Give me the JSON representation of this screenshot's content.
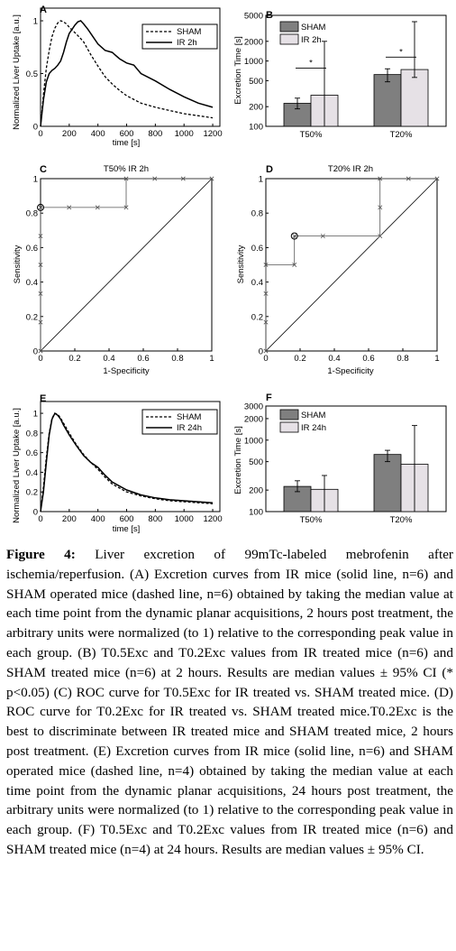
{
  "panels": {
    "A": {
      "letter": "A",
      "ylabel": "Normalized Liver Uptake [a.u.]",
      "xlabel": "time [s]",
      "legend": [
        "SHAM",
        "IR 2h"
      ]
    },
    "B": {
      "letter": "B",
      "ylabel": "Excretion Time [s]",
      "legend": [
        "SHAM",
        "IR 2h"
      ],
      "sig": "*"
    },
    "C": {
      "letter": "C",
      "title": "T50% IR 2h",
      "ylabel": "Sensitivity",
      "xlabel": "1-Specificity"
    },
    "D": {
      "letter": "D",
      "title": "T20% IR 2h",
      "ylabel": "Sensitivity",
      "xlabel": "1-Specificity"
    },
    "E": {
      "letter": "E",
      "ylabel": "Normalized Liver Uptake [a.u.]",
      "xlabel": "time [s]",
      "legend": [
        "SHAM",
        "IR 24h"
      ]
    },
    "F": {
      "letter": "F",
      "ylabel": "Excretion Time [s]",
      "legend": [
        "SHAM",
        "IR 24h"
      ]
    }
  },
  "colors": {
    "sham_bar": "#7f7f7f",
    "ir_bar": "#e6e1e6",
    "line": "#000000"
  },
  "caption": {
    "label": "Figure 4:",
    "text": " Liver excretion of 99mTc-labeled mebrofenin after ischemia/reperfusion. (A) Excretion curves from IR mice (solid line, n=6) and SHAM operated mice (dashed line, n=6) obtained by taking the median value at each time point from the dynamic planar acquisitions, 2 hours post treatment, the arbitrary units were normalized (to 1) relative to the corresponding peak value in each group. (B) T0.5Exc and T0.2Exc values from IR treated mice (n=6) and SHAM treated mice (n=6) at 2 hours. Results are median values ± 95% CI (* p<0.05) (C) ROC curve for T0.5Exc for IR treated vs. SHAM treated mice. (D) ROC curve for T0.2Exc for IR treated vs. SHAM treated mice.T0.2Exc is the best to discriminate between IR treated mice and SHAM treated mice, 2 hours post treatment. (E) Excretion curves from IR mice (solid line, n=6) and SHAM operated mice (dashed line, n=4) obtained by taking the median value at each time point from the dynamic planar acquisitions, 24 hours post treatment, the arbitrary units were normalized (to 1) relative to the corresponding peak value in each group. (F) T0.5Exc and T0.2Exc values from IR treated mice (n=6) and SHAM treated mice (n=4) at 24 hours. Results are median values ± 95% CI."
  },
  "chart_data": [
    {
      "id": "A",
      "type": "line",
      "xlabel": "time [s]",
      "ylabel": "Normalized Liver Uptake [a.u.]",
      "xlim": [
        0,
        1250
      ],
      "ylim": [
        0,
        1.12
      ],
      "xticks": [
        0,
        200,
        400,
        600,
        800,
        1000,
        1200
      ],
      "yticks": [
        0,
        0.5,
        1
      ],
      "legend_position": "top-right",
      "series": [
        {
          "name": "SHAM",
          "style": "dashed",
          "x": [
            0,
            20,
            40,
            60,
            80,
            100,
            120,
            140,
            160,
            180,
            200,
            230,
            260,
            300,
            350,
            400,
            450,
            500,
            550,
            600,
            700,
            800,
            900,
            1000,
            1100,
            1200
          ],
          "y": [
            0,
            0.3,
            0.55,
            0.72,
            0.85,
            0.93,
            0.98,
            1.0,
            0.99,
            0.97,
            0.94,
            0.9,
            0.86,
            0.8,
            0.68,
            0.57,
            0.47,
            0.4,
            0.34,
            0.29,
            0.22,
            0.18,
            0.15,
            0.12,
            0.1,
            0.08
          ]
        },
        {
          "name": "IR 2h",
          "style": "solid",
          "x": [
            0,
            20,
            40,
            60,
            80,
            100,
            120,
            140,
            160,
            180,
            200,
            220,
            240,
            260,
            280,
            300,
            330,
            360,
            400,
            450,
            500,
            550,
            600,
            650,
            700,
            800,
            900,
            1000,
            1100,
            1200
          ],
          "y": [
            0,
            0.25,
            0.42,
            0.5,
            0.53,
            0.55,
            0.58,
            0.62,
            0.7,
            0.8,
            0.88,
            0.92,
            0.96,
            0.99,
            1.0,
            0.97,
            0.92,
            0.86,
            0.78,
            0.72,
            0.7,
            0.64,
            0.6,
            0.58,
            0.5,
            0.43,
            0.35,
            0.28,
            0.22,
            0.18
          ]
        }
      ]
    },
    {
      "id": "B",
      "type": "bar",
      "ylabel": "Excretion Time [s]",
      "yscale": "log",
      "ylim": [
        100,
        5000
      ],
      "yticks": [
        100,
        200,
        500,
        1000,
        2000,
        5000
      ],
      "categories": [
        "T50%",
        "T20%"
      ],
      "legend_position": "top-left",
      "series": [
        {
          "name": "SHAM",
          "values": [
            225,
            620
          ],
          "ci_low": [
            185,
            480
          ],
          "ci_high": [
            270,
            760
          ]
        },
        {
          "name": "IR 2h",
          "values": [
            300,
            740
          ],
          "ci_low": [
            100,
            560
          ],
          "ci_high": [
            2000,
            4000
          ]
        }
      ],
      "annotations": [
        "*",
        "*"
      ]
    },
    {
      "id": "C",
      "type": "line",
      "title": "T50% IR 2h",
      "xlabel": "1-Specificity",
      "ylabel": "Sensitivity",
      "xlim": [
        0,
        1
      ],
      "ylim": [
        0,
        1
      ],
      "xticks": [
        0,
        0.2,
        0.4,
        0.6,
        0.8,
        1
      ],
      "yticks": [
        0,
        0.2,
        0.4,
        0.6,
        0.8,
        1
      ],
      "roc_x": [
        0,
        0,
        0,
        0,
        0,
        0,
        0.167,
        0.333,
        0.5,
        0.5,
        0.667,
        0.833,
        1
      ],
      "roc_y": [
        0,
        0.167,
        0.333,
        0.5,
        0.667,
        0.833,
        0.833,
        0.833,
        0.833,
        1,
        1,
        1,
        1
      ],
      "operating_point": [
        0,
        0.833
      ],
      "reference_line": [
        [
          0,
          0
        ],
        [
          1,
          1
        ]
      ]
    },
    {
      "id": "D",
      "type": "line",
      "title": "T20% IR 2h",
      "xlabel": "1-Specificity",
      "ylabel": "Sensitivity",
      "xlim": [
        0,
        1
      ],
      "ylim": [
        0,
        1
      ],
      "xticks": [
        0,
        0.2,
        0.4,
        0.6,
        0.8,
        1
      ],
      "yticks": [
        0,
        0.2,
        0.4,
        0.6,
        0.8,
        1
      ],
      "roc_x": [
        0,
        0,
        0,
        0,
        0.167,
        0.167,
        0.333,
        0.667,
        0.667,
        0.667,
        0.833,
        1
      ],
      "roc_y": [
        0,
        0.167,
        0.333,
        0.5,
        0.5,
        0.667,
        0.667,
        0.667,
        0.833,
        1,
        1,
        1
      ],
      "operating_point": [
        0.167,
        0.667
      ],
      "reference_line": [
        [
          0,
          0
        ],
        [
          1,
          1
        ]
      ]
    },
    {
      "id": "E",
      "type": "line",
      "xlabel": "time [s]",
      "ylabel": "Normalized Liver Uptake [a.u.]",
      "xlim": [
        0,
        1250
      ],
      "ylim": [
        0,
        1.12
      ],
      "xticks": [
        0,
        200,
        400,
        600,
        800,
        1000,
        1200
      ],
      "yticks": [
        0,
        0.2,
        0.4,
        0.6,
        0.8,
        1
      ],
      "legend_position": "top-right",
      "series": [
        {
          "name": "SHAM",
          "style": "dashed",
          "x": [
            0,
            20,
            40,
            60,
            80,
            100,
            120,
            140,
            160,
            200,
            250,
            300,
            350,
            400,
            450,
            500,
            600,
            700,
            800,
            900,
            1000,
            1100,
            1200
          ],
          "y": [
            0,
            0.25,
            0.55,
            0.8,
            0.95,
            1.0,
            0.99,
            0.95,
            0.9,
            0.8,
            0.68,
            0.58,
            0.5,
            0.43,
            0.35,
            0.28,
            0.2,
            0.16,
            0.13,
            0.11,
            0.1,
            0.09,
            0.08
          ]
        },
        {
          "name": "IR 24h",
          "style": "solid",
          "x": [
            0,
            20,
            40,
            60,
            80,
            100,
            120,
            140,
            160,
            200,
            250,
            300,
            350,
            400,
            450,
            500,
            600,
            700,
            800,
            900,
            1000,
            1100,
            1200
          ],
          "y": [
            0,
            0.2,
            0.5,
            0.78,
            0.94,
            1.0,
            0.98,
            0.94,
            0.88,
            0.78,
            0.67,
            0.57,
            0.5,
            0.45,
            0.37,
            0.3,
            0.22,
            0.17,
            0.14,
            0.12,
            0.11,
            0.1,
            0.09
          ]
        }
      ]
    },
    {
      "id": "F",
      "type": "bar",
      "ylabel": "Excretion Time [s]",
      "yscale": "log",
      "ylim": [
        100,
        3000
      ],
      "yticks": [
        100,
        200,
        500,
        1000,
        2000,
        3000
      ],
      "categories": [
        "T50%",
        "T20%"
      ],
      "legend_position": "top-left",
      "series": [
        {
          "name": "SHAM",
          "values": [
            225,
            630
          ],
          "ci_low": [
            190,
            500
          ],
          "ci_high": [
            270,
            720
          ]
        },
        {
          "name": "IR 24h",
          "values": [
            205,
            460
          ],
          "ci_low": [
            100,
            100
          ],
          "ci_high": [
            320,
            1600
          ]
        }
      ]
    }
  ]
}
